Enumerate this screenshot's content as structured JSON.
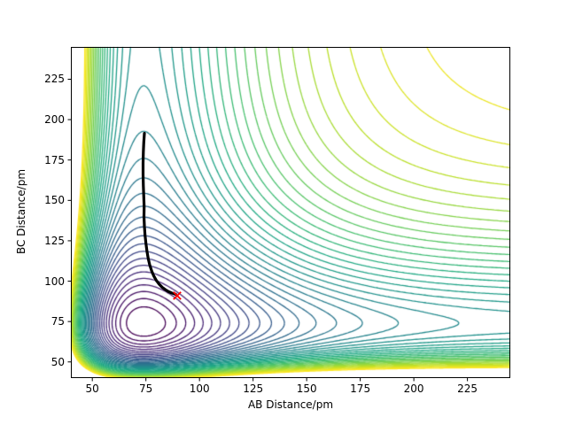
{
  "figure": {
    "background": "#ffffff"
  },
  "chart_data": {
    "type": "contour",
    "title": "",
    "xlabel": "AB Distance/pm",
    "ylabel": "BC Distance/pm",
    "xlim": [
      40,
      245
    ],
    "ylim": [
      40,
      245
    ],
    "x_ticks": [
      50,
      75,
      100,
      125,
      150,
      175,
      200,
      225
    ],
    "y_ticks": [
      50,
      75,
      100,
      125,
      150,
      175,
      200,
      225
    ],
    "grid": false,
    "legend": null,
    "surface": {
      "model": "sum_of_morse",
      "formula": "V(x,y) = D*(1-exp(-a*(x-r0)))^2 + D*(1-exp(-a*(y-r0)))^2",
      "D": 1.0,
      "a": 0.025,
      "r0": 74
    },
    "levels": {
      "min": 0.05,
      "max": 1.95,
      "count": 39
    },
    "colormap": {
      "name": "viridis",
      "anchors": [
        [
          0.0,
          68,
          1,
          84
        ],
        [
          0.1,
          72,
          36,
          117
        ],
        [
          0.2,
          65,
          68,
          135
        ],
        [
          0.3,
          53,
          95,
          141
        ],
        [
          0.4,
          42,
          120,
          142
        ],
        [
          0.5,
          33,
          145,
          140
        ],
        [
          0.6,
          30,
          168,
          133
        ],
        [
          0.7,
          66,
          190,
          113
        ],
        [
          0.8,
          122,
          209,
          81
        ],
        [
          0.9,
          189,
          223,
          38
        ],
        [
          1.0,
          253,
          231,
          37
        ]
      ]
    },
    "trajectory": {
      "color": "#000000",
      "line_width": 3.2,
      "points": [
        [
          74.3,
          191.5
        ],
        [
          74.0,
          186
        ],
        [
          73.8,
          180
        ],
        [
          73.7,
          173
        ],
        [
          73.7,
          166
        ],
        [
          73.8,
          159
        ],
        [
          74.0,
          152
        ],
        [
          74.2,
          146
        ],
        [
          74.1,
          140
        ],
        [
          74.3,
          134
        ],
        [
          74.6,
          128.5
        ],
        [
          75.0,
          123.5
        ],
        [
          75.5,
          118.5
        ],
        [
          76.1,
          114
        ],
        [
          76.8,
          110
        ],
        [
          77.7,
          106.3
        ],
        [
          78.7,
          103.2
        ],
        [
          79.9,
          100.4
        ],
        [
          81.2,
          98.1
        ],
        [
          82.6,
          96.2
        ],
        [
          84.1,
          94.7
        ],
        [
          85.6,
          93.5
        ],
        [
          87.0,
          92.7
        ],
        [
          88.3,
          92.1
        ],
        [
          88.9,
          91.8
        ]
      ]
    },
    "marker": {
      "symbol": "x",
      "color": "#ff0000",
      "x": 89.6,
      "y": 91.0,
      "size": 4.2
    }
  }
}
